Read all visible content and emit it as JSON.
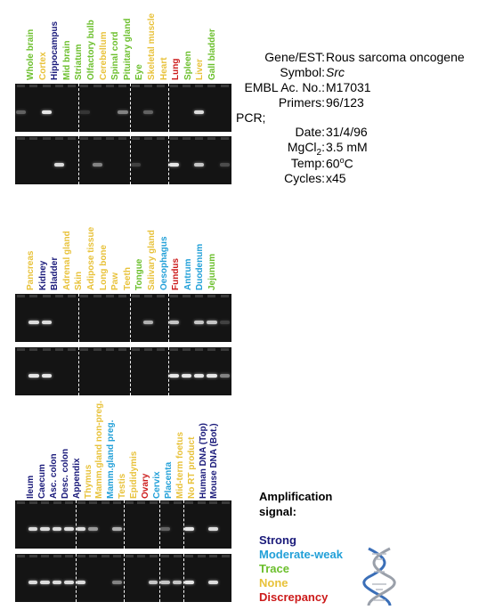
{
  "colors": {
    "strong": "#1a1a7a",
    "moderate": "#22a0d8",
    "trace": "#6bbf2c",
    "none": "#e8c23a",
    "discrepancy": "#cc1a1a"
  },
  "panels": [
    {
      "lanes": [
        {
          "label": "Whole brain",
          "signal": "trace"
        },
        {
          "label": "Cortex",
          "signal": "none"
        },
        {
          "label": "Hippocampus",
          "signal": "strong"
        },
        {
          "label": "Mid brain",
          "signal": "trace"
        },
        {
          "label": "Striatum",
          "signal": "trace"
        },
        {
          "label": "Olfactory bulb",
          "signal": "trace"
        },
        {
          "label": "Cerebellum",
          "signal": "none"
        },
        {
          "label": "Spinal cord",
          "signal": "trace"
        },
        {
          "label": "Pituitary gland",
          "signal": "trace"
        },
        {
          "label": "Eye",
          "signal": "trace"
        },
        {
          "label": "Skeletal muscle",
          "signal": "none"
        },
        {
          "label": "Heart",
          "signal": "none"
        },
        {
          "label": "Lung",
          "signal": "discrepancy"
        },
        {
          "label": "Spleen",
          "signal": "trace"
        },
        {
          "label": "Liver",
          "signal": "none"
        },
        {
          "label": "Gall bladder",
          "signal": "trace"
        }
      ]
    },
    {
      "lanes": [
        {
          "label": "Pancreas",
          "signal": "none"
        },
        {
          "label": "Kidney",
          "signal": "strong"
        },
        {
          "label": "Bladder",
          "signal": "strong"
        },
        {
          "label": "Adrenal gland",
          "signal": "none"
        },
        {
          "label": "Skin",
          "signal": "none"
        },
        {
          "label": "Adipose tissue",
          "signal": "none"
        },
        {
          "label": "Long bone",
          "signal": "none"
        },
        {
          "label": "Paw",
          "signal": "none"
        },
        {
          "label": "Teeth",
          "signal": "none"
        },
        {
          "label": "Tongue",
          "signal": "trace"
        },
        {
          "label": "Salivary gland",
          "signal": "none"
        },
        {
          "label": "Oesophagus",
          "signal": "moderate"
        },
        {
          "label": "Fundus",
          "signal": "discrepancy"
        },
        {
          "label": "Antrum",
          "signal": "moderate"
        },
        {
          "label": "Duodenum",
          "signal": "moderate"
        },
        {
          "label": "Jejunum",
          "signal": "trace"
        }
      ]
    },
    {
      "lanes": [
        {
          "label": "Ileum",
          "signal": "strong"
        },
        {
          "label": "Caecum",
          "signal": "strong"
        },
        {
          "label": "Asc. colon",
          "signal": "strong"
        },
        {
          "label": "Desc. colon",
          "signal": "strong"
        },
        {
          "label": "Appendix",
          "signal": "strong"
        },
        {
          "label": "Thymus",
          "signal": "none"
        },
        {
          "label": "Mamm.gland non-preg.",
          "signal": "none"
        },
        {
          "label": "Mamm.gland preg.",
          "signal": "moderate"
        },
        {
          "label": "Testis",
          "signal": "none"
        },
        {
          "label": "Epididymis",
          "signal": "none"
        },
        {
          "label": "Ovary",
          "signal": "discrepancy"
        },
        {
          "label": "Cervix",
          "signal": "moderate"
        },
        {
          "label": "Placenta",
          "signal": "moderate"
        },
        {
          "label": "Mid-term foetus",
          "signal": "none"
        },
        {
          "label": "No RT product",
          "signal": "none"
        },
        {
          "label": "Human DNA (Top)",
          "signal": "strong"
        },
        {
          "label": "Mouse DNA (Bot.)",
          "signal": "strong"
        }
      ]
    }
  ],
  "info": {
    "gene_key": "Gene/EST:",
    "gene_val": "Rous sarcoma oncogene",
    "symbol_key": "Symbol:",
    "symbol_val": "Src",
    "embl_key": "EMBL Ac. No.:",
    "embl_val": "M17031",
    "primers_key": "Primers:",
    "primers_val": "96/123",
    "pcr_key": "PCR;",
    "date_key": "Date:",
    "date_val": "31/4/96",
    "mgcl_key": "MgCl",
    "mgcl_sub": "2",
    "mgcl_colon": ":",
    "mgcl_val": "3.5 mM",
    "temp_key": "Temp:",
    "temp_num": "60",
    "temp_sup": "o",
    "temp_unit": "C",
    "cycles_key": "Cycles:",
    "cycles_val": "x45"
  },
  "legend": {
    "title_line1": "Amplification",
    "title_line2": "signal:",
    "items": [
      {
        "label": "Strong",
        "signal": "strong"
      },
      {
        "label": "Moderate-weak",
        "signal": "moderate"
      },
      {
        "label": "Trace",
        "signal": "trace"
      },
      {
        "label": "None",
        "signal": "none"
      },
      {
        "label": "Discrepancy",
        "signal": "discrepancy"
      }
    ]
  },
  "gels": [
    {
      "panel": 0,
      "row": 0,
      "bands": [
        [
          0,
          0.35
        ],
        [
          2,
          0.95
        ],
        [
          5,
          0.15
        ],
        [
          8,
          0.5
        ],
        [
          10,
          0.35
        ],
        [
          14,
          0.9
        ]
      ]
    },
    {
      "panel": 0,
      "row": 1,
      "bands": [
        [
          3,
          0.9
        ],
        [
          6,
          0.5
        ],
        [
          9,
          0.2
        ],
        [
          12,
          0.95
        ],
        [
          14,
          0.8
        ],
        [
          16,
          0.25
        ]
      ]
    },
    {
      "panel": 1,
      "row": 0,
      "bands": [
        [
          1,
          0.9
        ],
        [
          2,
          0.9
        ],
        [
          10,
          0.7
        ],
        [
          12,
          0.8
        ],
        [
          14,
          0.8
        ],
        [
          15,
          0.8
        ],
        [
          16,
          0.2
        ]
      ]
    },
    {
      "panel": 1,
      "row": 1,
      "bands": [
        [
          1,
          0.95
        ],
        [
          2,
          0.95
        ],
        [
          12,
          0.95
        ],
        [
          13,
          0.95
        ],
        [
          14,
          0.95
        ],
        [
          15,
          0.95
        ],
        [
          16,
          0.5
        ]
      ]
    },
    {
      "panel": 2,
      "row": 0,
      "bands": [
        [
          1,
          0.9
        ],
        [
          2,
          0.9
        ],
        [
          3,
          0.9
        ],
        [
          4,
          0.9
        ],
        [
          5,
          0.9
        ],
        [
          6,
          0.6
        ],
        [
          8,
          0.7
        ],
        [
          12,
          0.35
        ],
        [
          14,
          0.95
        ],
        [
          16,
          0.9
        ]
      ]
    },
    {
      "panel": 2,
      "row": 1,
      "bands": [
        [
          1,
          0.9
        ],
        [
          2,
          0.9
        ],
        [
          3,
          0.9
        ],
        [
          4,
          0.9
        ],
        [
          5,
          0.9
        ],
        [
          8,
          0.5
        ],
        [
          11,
          0.8
        ],
        [
          12,
          0.8
        ],
        [
          13,
          0.8
        ],
        [
          14,
          0.95
        ],
        [
          16,
          0.9
        ]
      ]
    }
  ]
}
